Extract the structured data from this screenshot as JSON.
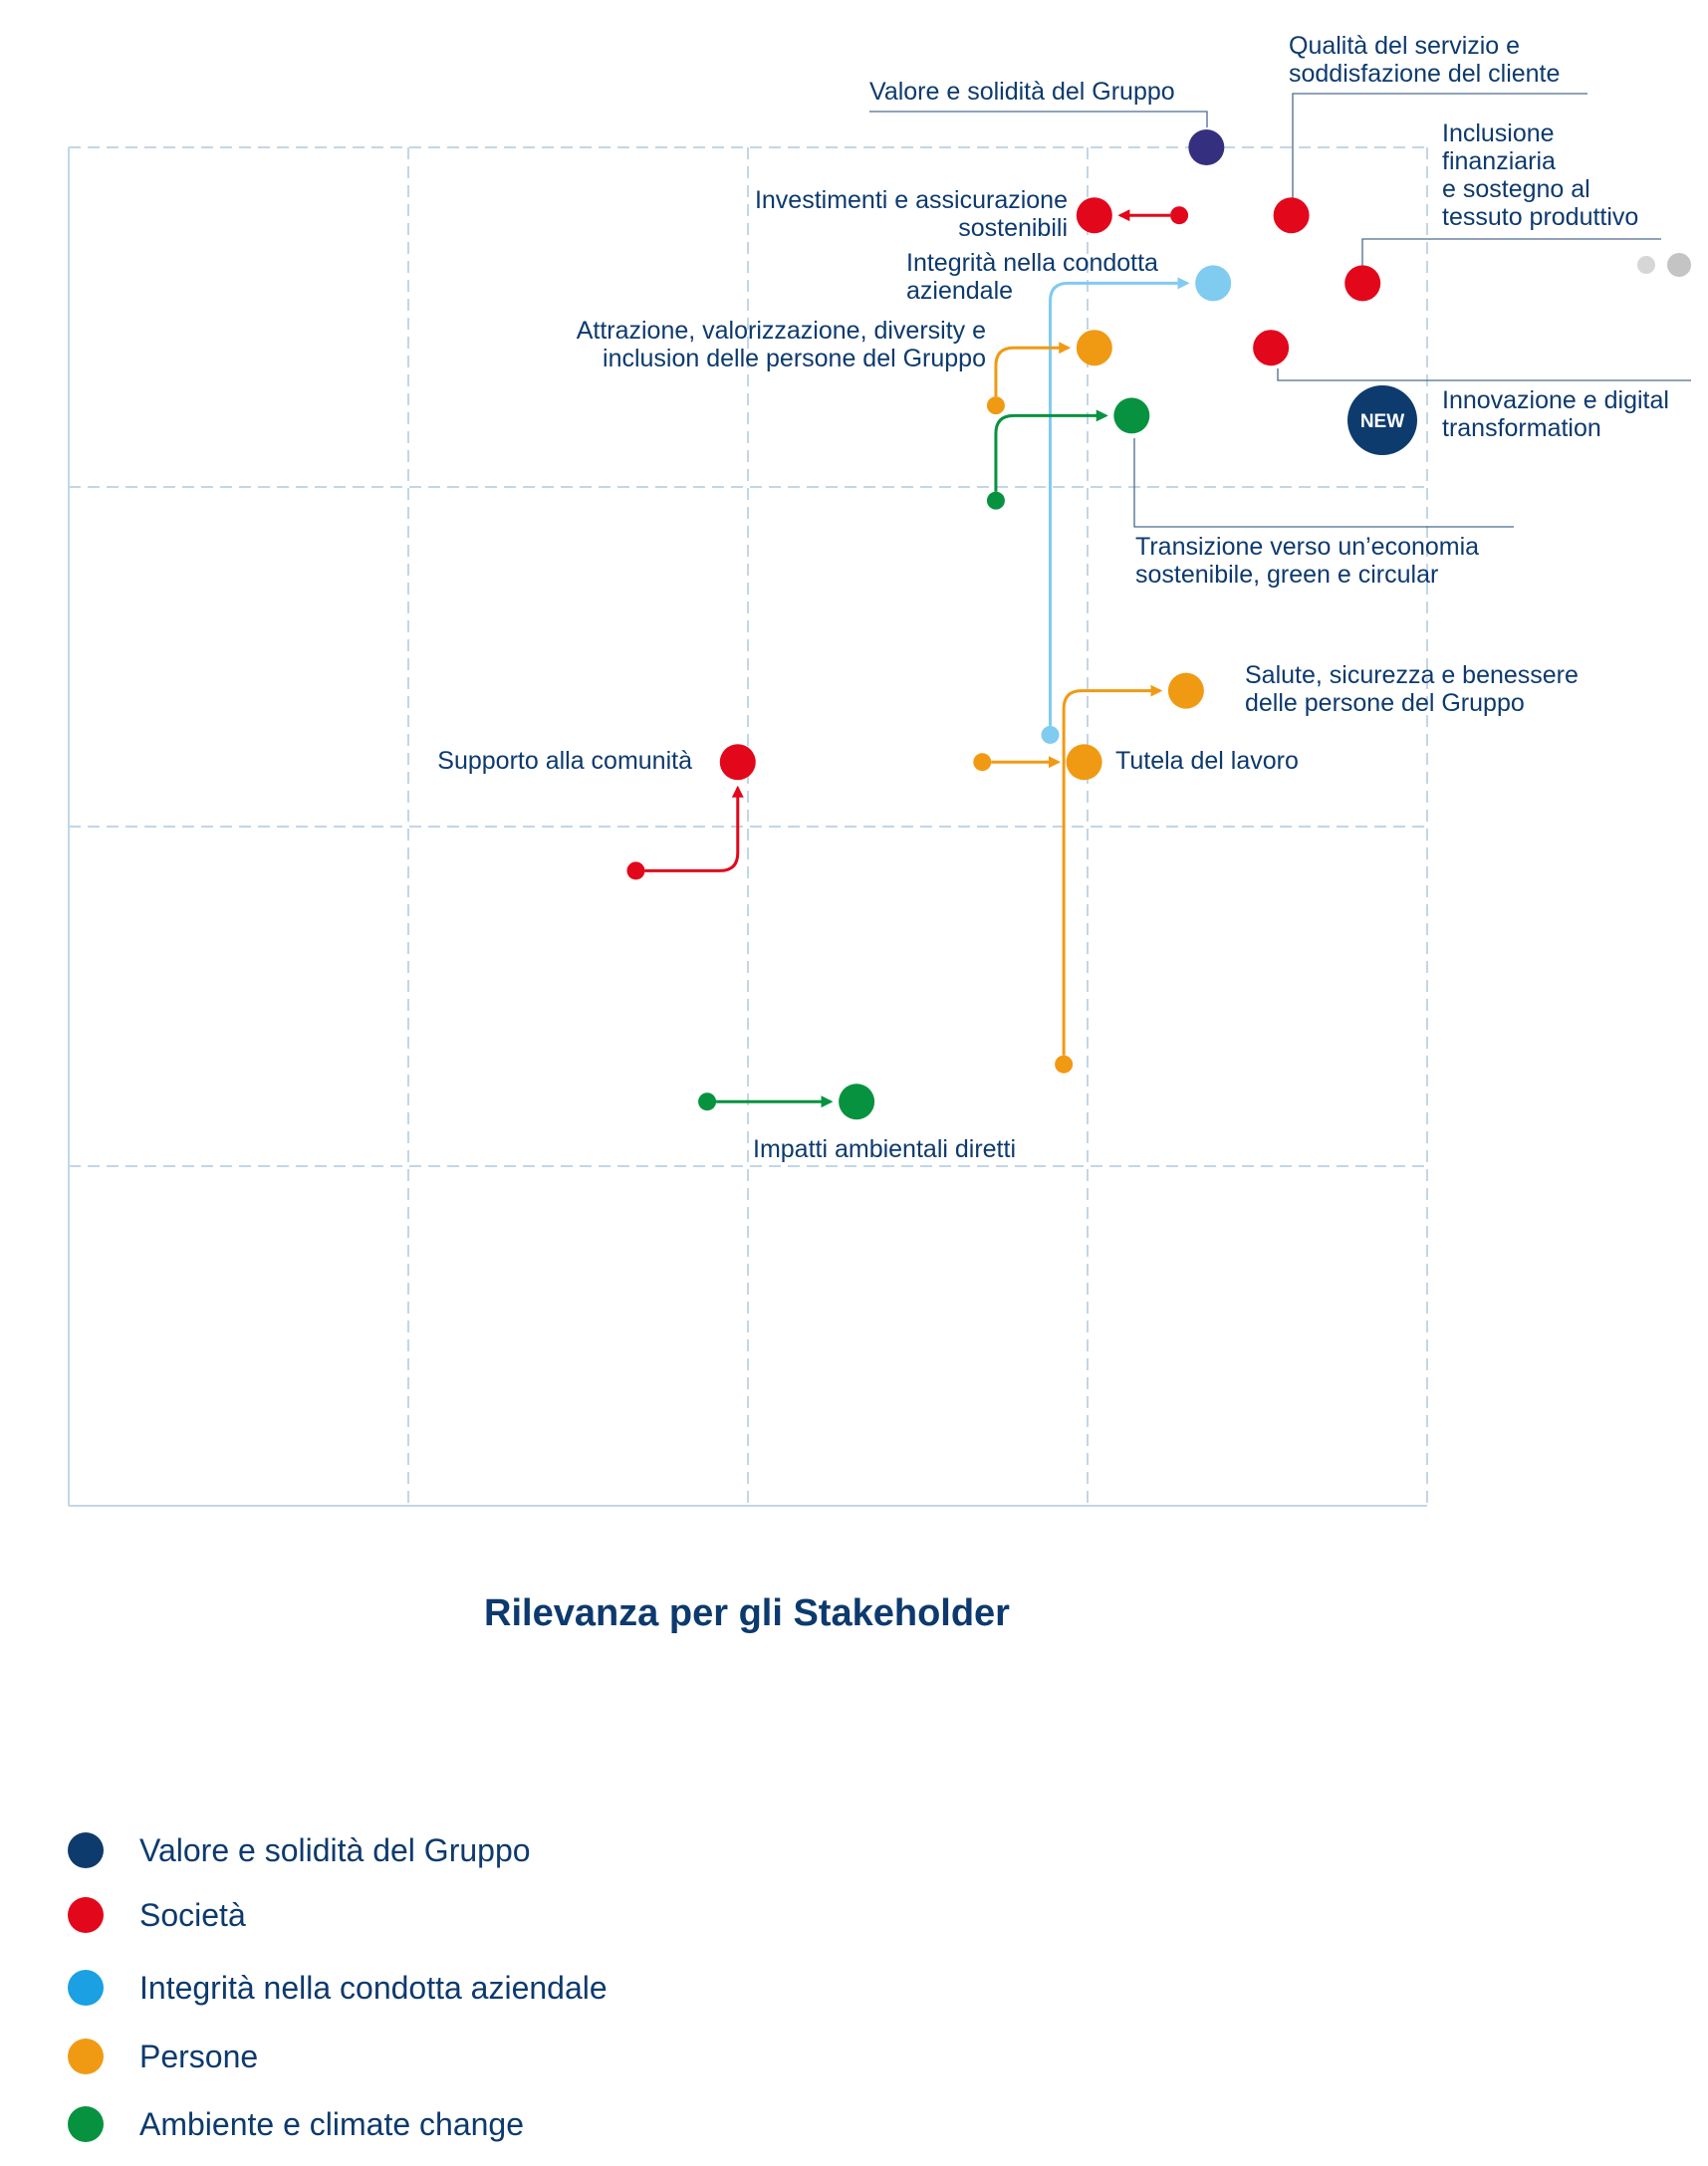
{
  "chart_data": {
    "type": "scatter",
    "title": "",
    "xlabel": "Rilevanza per gli Stakeholder",
    "ylabel": "",
    "xlim": [
      0,
      4
    ],
    "ylim": [
      0,
      4
    ],
    "grid": true,
    "legend_position": "bottom-left",
    "colors": {
      "valore": "#34307f",
      "societa": "#e2071b",
      "integrita": "#80cbf0",
      "persone": "#f09a14",
      "ambiente": "#07923f",
      "previous_marker": "#c4c4c4",
      "label": "#0d3a6e",
      "new_badge": "#0e3b6d"
    },
    "series": [
      {
        "name": "Valore e solidità del Gruppo",
        "key": "valore",
        "legend_color": "#0e3b6d"
      },
      {
        "name": "Società",
        "key": "societa",
        "legend_color": "#e2071b"
      },
      {
        "name": "Integrità nella condotta aziendale",
        "key": "integrita",
        "legend_color": "#1aa0e3"
      },
      {
        "name": "Persone",
        "key": "persone",
        "legend_color": "#f09a14"
      },
      {
        "name": "Ambiente e climate change",
        "key": "ambiente",
        "legend_color": "#07923f"
      }
    ],
    "topics": [
      {
        "key": "valore-solidita",
        "series": "valore",
        "label": [
          "Valore e solidità del Gruppo"
        ],
        "x": 3.35,
        "y": 4.0
      },
      {
        "key": "qualita-servizio",
        "series": "societa",
        "label": [
          "Qualità del servizio e",
          "soddisfazione del cliente"
        ],
        "x": 3.6,
        "y": 3.8
      },
      {
        "key": "investimenti",
        "series": "societa",
        "label": [
          "Investimenti e assicurazione",
          "sostenibili"
        ],
        "x": 3.02,
        "y": 3.8,
        "prev_x": 3.27,
        "prev_y": 3.8
      },
      {
        "key": "inclusione",
        "series": "societa",
        "label": [
          "Inclusione",
          "finanziaria",
          "e sostegno al",
          "tessuto produttivo"
        ],
        "x": 3.81,
        "y": 3.6
      },
      {
        "key": "integrita",
        "series": "integrita",
        "label": [
          "Integrità nella condotta",
          "aziendale"
        ],
        "x": 3.37,
        "y": 3.6,
        "prev_x": 2.89,
        "prev_y": 2.27
      },
      {
        "key": "attrazione",
        "series": "persone",
        "label": [
          "Attrazione, valorizzazione, diversity e",
          "inclusion delle persone del Gruppo"
        ],
        "x": 3.02,
        "y": 3.41,
        "prev_x": 2.73,
        "prev_y": 3.24
      },
      {
        "key": "innovazione",
        "series": "societa",
        "label": [
          "Innovazione e digital",
          "transformation"
        ],
        "x": 3.54,
        "y": 3.41,
        "is_new": true,
        "badge": "NEW"
      },
      {
        "key": "transizione",
        "series": "ambiente",
        "label": [
          "Transizione verso un’economia",
          "sostenibile, green e circular"
        ],
        "x": 3.13,
        "y": 3.21,
        "prev_x": 2.73,
        "prev_y": 2.96
      },
      {
        "key": "salute",
        "series": "persone",
        "label": [
          "Salute, sicurezza e benessere",
          "delle persone del Gruppo"
        ],
        "x": 3.29,
        "y": 2.4,
        "prev_x": 2.93,
        "prev_y": 1.3
      },
      {
        "key": "tutela",
        "series": "persone",
        "label": [
          "Tutela del lavoro"
        ],
        "x": 2.99,
        "y": 2.19,
        "prev_x": 2.69,
        "prev_y": 2.19
      },
      {
        "key": "supporto",
        "series": "societa",
        "label": [
          "Supporto alla comunità"
        ],
        "x": 1.97,
        "y": 2.19,
        "prev_x": 1.67,
        "prev_y": 1.87
      },
      {
        "key": "impatti",
        "series": "ambiente",
        "label": [
          "Impatti ambientali diretti"
        ],
        "x": 2.32,
        "y": 1.19,
        "prev_x": 1.88,
        "prev_y": 1.19
      }
    ],
    "scale_legend": {
      "markers": [
        "previous",
        "current"
      ]
    }
  }
}
